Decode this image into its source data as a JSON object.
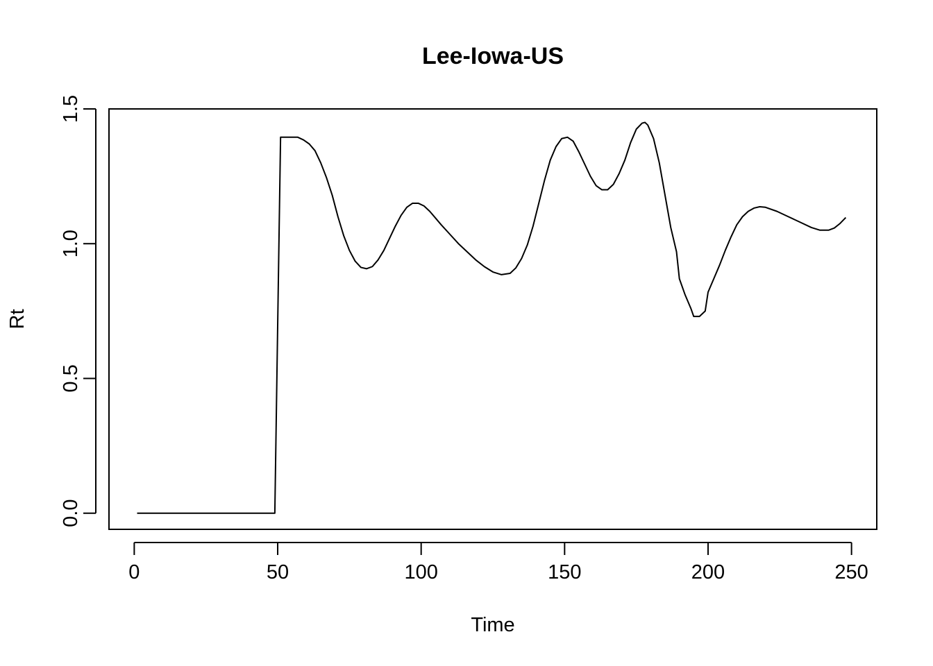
{
  "chart_data": {
    "type": "line",
    "title": "Lee-Iowa-US",
    "xlabel": "Time",
    "ylabel": "Rt",
    "xlim": [
      -8.8,
      258.8
    ],
    "ylim": [
      -0.06,
      1.5
    ],
    "xticks": [
      {
        "value": 0,
        "label": "0"
      },
      {
        "value": 50,
        "label": "50"
      },
      {
        "value": 100,
        "label": "100"
      },
      {
        "value": 150,
        "label": "150"
      },
      {
        "value": 200,
        "label": "200"
      },
      {
        "value": 250,
        "label": "250"
      }
    ],
    "yticks": [
      {
        "value": 0.0,
        "label": "0.0"
      },
      {
        "value": 0.5,
        "label": "0.5"
      },
      {
        "value": 1.0,
        "label": "1.0"
      },
      {
        "value": 1.5,
        "label": "1.5"
      }
    ],
    "grid": false,
    "legend": "none",
    "line_color": "#000000",
    "series": [
      {
        "x": [
          1,
          10,
          20,
          30,
          40,
          48,
          49,
          49.5,
          50,
          50.5,
          51,
          53,
          55,
          57,
          59,
          61,
          63,
          65,
          67,
          69,
          71,
          73,
          75,
          77,
          79,
          81,
          83,
          85,
          87,
          89,
          91,
          93,
          95,
          97,
          99,
          101,
          103,
          105,
          107,
          110,
          113,
          116,
          119,
          122,
          125,
          128,
          131,
          133,
          135,
          137,
          139,
          141,
          143,
          145,
          147,
          149,
          151,
          153,
          155,
          157,
          159,
          161,
          163,
          165,
          167,
          169,
          171,
          173,
          175,
          177,
          178,
          179,
          181,
          183,
          185,
          187,
          189,
          190,
          192,
          194,
          195,
          197,
          199,
          200,
          202,
          204,
          206,
          208,
          210,
          212,
          214,
          216,
          218,
          220,
          224,
          228,
          232,
          236,
          239,
          242,
          244,
          246,
          248
        ],
        "values": [
          0.0,
          0.0,
          0.0,
          0.0,
          0.0,
          0.0,
          0.0,
          0.35,
          0.7,
          1.05,
          1.395,
          1.395,
          1.395,
          1.395,
          1.385,
          1.37,
          1.345,
          1.3,
          1.245,
          1.18,
          1.1,
          1.03,
          0.975,
          0.935,
          0.912,
          0.907,
          0.915,
          0.94,
          0.975,
          1.02,
          1.065,
          1.105,
          1.135,
          1.15,
          1.15,
          1.14,
          1.12,
          1.095,
          1.07,
          1.035,
          1.0,
          0.97,
          0.94,
          0.915,
          0.895,
          0.885,
          0.89,
          0.91,
          0.945,
          0.995,
          1.065,
          1.15,
          1.235,
          1.31,
          1.36,
          1.39,
          1.395,
          1.38,
          1.34,
          1.295,
          1.25,
          1.215,
          1.2,
          1.2,
          1.22,
          1.26,
          1.31,
          1.375,
          1.425,
          1.447,
          1.45,
          1.44,
          1.39,
          1.3,
          1.18,
          1.06,
          0.97,
          0.87,
          0.81,
          0.76,
          0.73,
          0.73,
          0.75,
          0.82,
          0.87,
          0.92,
          0.975,
          1.025,
          1.07,
          1.1,
          1.12,
          1.132,
          1.137,
          1.135,
          1.12,
          1.1,
          1.08,
          1.06,
          1.05,
          1.05,
          1.058,
          1.075,
          1.097
        ]
      }
    ]
  }
}
